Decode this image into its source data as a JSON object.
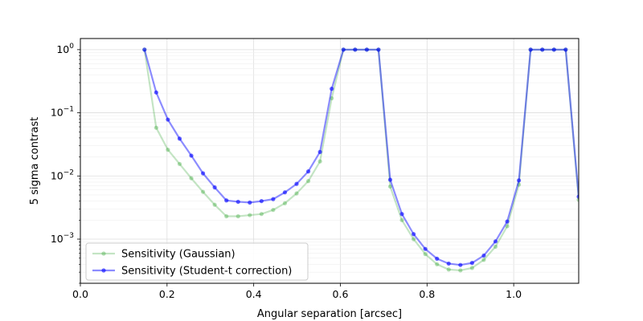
{
  "chart_data": {
    "type": "line",
    "xlabel": "Angular separation [arcsec]",
    "ylabel": "5 sigma contrast",
    "xlim": [
      0.0,
      1.15
    ],
    "ylim": [
      0.0002,
      1.5
    ],
    "yscale": "log",
    "grid": true,
    "legend_position": "lower-left",
    "x_ticks": [
      0.0,
      0.2,
      0.4,
      0.6,
      0.8,
      1.0
    ],
    "x_tick_labels": [
      "0.0",
      "0.2",
      "0.4",
      "0.6",
      "0.8",
      "1.0"
    ],
    "y_ticks": [
      0.001,
      0.01,
      0.1,
      1.0
    ],
    "y_tick_labels": [
      {
        "base": "10",
        "exp": "−3"
      },
      {
        "base": "10",
        "exp": "−2"
      },
      {
        "base": "10",
        "exp": "−1"
      },
      {
        "base": "10",
        "exp": "0"
      }
    ],
    "x": [
      0.148,
      0.175,
      0.202,
      0.229,
      0.256,
      0.283,
      0.31,
      0.337,
      0.364,
      0.391,
      0.418,
      0.445,
      0.472,
      0.499,
      0.526,
      0.553,
      0.58,
      0.607,
      0.634,
      0.661,
      0.688,
      0.715,
      0.742,
      0.769,
      0.796,
      0.823,
      0.85,
      0.877,
      0.904,
      0.931,
      0.958,
      0.985,
      1.012,
      1.039,
      1.066,
      1.093,
      1.12,
      1.15
    ],
    "series": [
      {
        "name": "Sensitivity (Gaussian)",
        "color": "#2ca02c",
        "values": [
          1.0,
          0.058,
          0.026,
          0.0155,
          0.0092,
          0.0056,
          0.0035,
          0.0023,
          0.0023,
          0.0024,
          0.0025,
          0.0029,
          0.0037,
          0.0053,
          0.0083,
          0.017,
          0.17,
          1.0,
          1.0,
          1.0,
          1.0,
          0.0068,
          0.002,
          0.001,
          0.00058,
          0.0004,
          0.00033,
          0.00032,
          0.00035,
          0.00047,
          0.00076,
          0.0016,
          0.0073,
          1.0,
          1.0,
          1.0,
          1.0,
          0.0042
        ]
      },
      {
        "name": "Sensitivity (Student-t correction)",
        "color": "#0000ff",
        "values": [
          1.0,
          0.21,
          0.078,
          0.039,
          0.021,
          0.011,
          0.0066,
          0.0041,
          0.0039,
          0.0038,
          0.004,
          0.0043,
          0.0055,
          0.0075,
          0.0118,
          0.024,
          0.24,
          1.0,
          1.0,
          1.0,
          1.0,
          0.0087,
          0.0025,
          0.0012,
          0.0007,
          0.00049,
          0.00041,
          0.00039,
          0.00042,
          0.00055,
          0.00092,
          0.0019,
          0.0085,
          1.0,
          1.0,
          1.0,
          1.0,
          0.0047
        ]
      }
    ]
  }
}
